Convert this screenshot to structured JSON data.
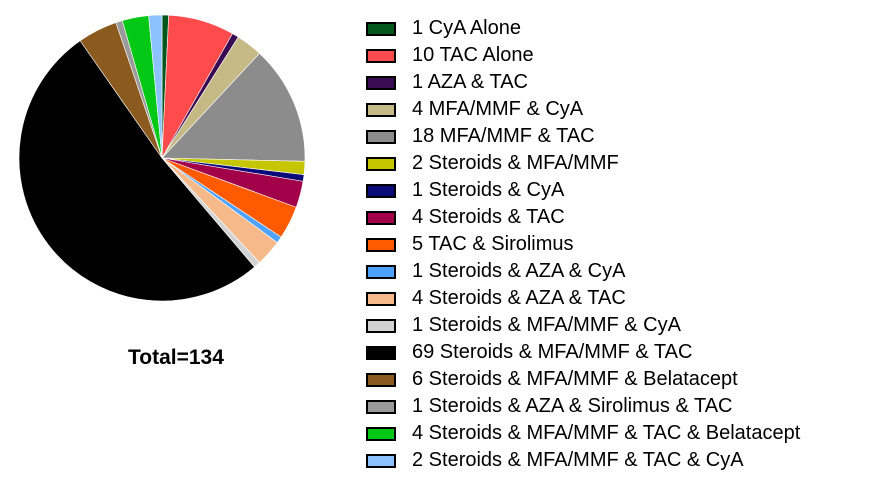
{
  "chart_data": {
    "type": "pie",
    "total_label": "Total=134",
    "start_angle_deg": 0,
    "direction": "clockwise",
    "legend_position": "right",
    "slices": [
      {
        "label": "1 CyA Alone",
        "value": 1,
        "color": "#00561b"
      },
      {
        "label": "10 TAC Alone",
        "value": 10,
        "color": "#ff4b4b"
      },
      {
        "label": "1 AZA & TAC",
        "value": 1,
        "color": "#3a0a52"
      },
      {
        "label": "4 MFA/MMF & CyA",
        "value": 4,
        "color": "#c5b986"
      },
      {
        "label": "18 MFA/MMF & TAC",
        "value": 18,
        "color": "#8c8c8c"
      },
      {
        "label": "2 Steroids & MFA/MMF",
        "value": 2,
        "color": "#c5c500"
      },
      {
        "label": "1 Steroids & CyA",
        "value": 1,
        "color": "#0a0a78"
      },
      {
        "label": "4 Steroids & TAC",
        "value": 4,
        "color": "#a3004a"
      },
      {
        "label": "5 TAC & Sirolimus",
        "value": 5,
        "color": "#ff5a00"
      },
      {
        "label": "1 Steroids & AZA & CyA",
        "value": 1,
        "color": "#4fa3ff"
      },
      {
        "label": "4 Steroids & AZA & TAC",
        "value": 4,
        "color": "#f6b98a"
      },
      {
        "label": "1 Steroids & MFA/MMF & CyA",
        "value": 1,
        "color": "#d2d2d2"
      },
      {
        "label": "69 Steroids & MFA/MMF & TAC",
        "value": 69,
        "color": "#000000"
      },
      {
        "label": "6 Steroids & MFA/MMF & Belatacept",
        "value": 6,
        "color": "#8b5a1f"
      },
      {
        "label": "1 Steroids & AZA & Sirolimus & TAC",
        "value": 1,
        "color": "#9a9a9a"
      },
      {
        "label": "4 Steroids & MFA/MMF & TAC & Belatacept",
        "value": 4,
        "color": "#00c814"
      },
      {
        "label": "2 Steroids & MFA/MMF & TAC & CyA",
        "value": 2,
        "color": "#8cc3ff"
      }
    ]
  }
}
